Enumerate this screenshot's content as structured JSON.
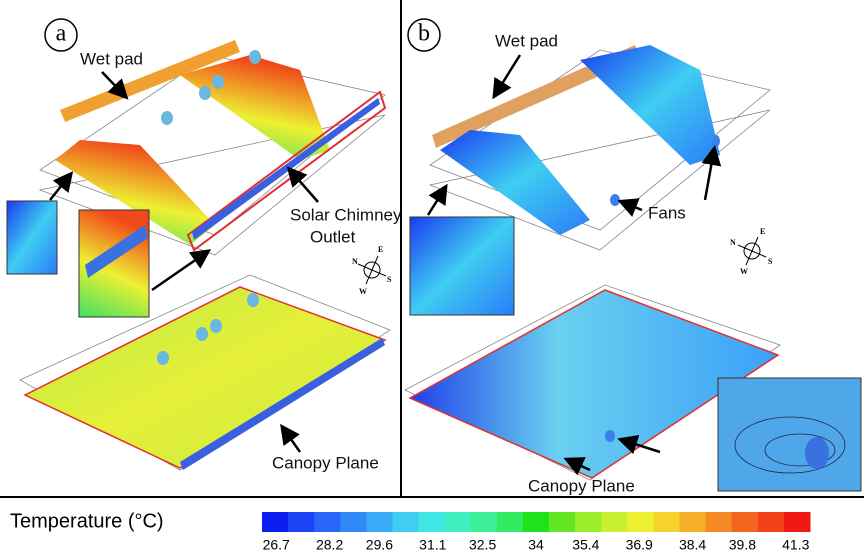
{
  "panels": [
    {
      "label": "a",
      "annotations": [
        "Wet pad",
        "Solar Chimney",
        "Outlet",
        "Canopy Plane"
      ],
      "compass": [
        "N",
        "E",
        "S",
        "W"
      ]
    },
    {
      "label": "b",
      "annotations": [
        "Wet pad",
        "Fans",
        "Canopy Plane"
      ],
      "compass": [
        "N",
        "E",
        "S",
        "W"
      ]
    }
  ],
  "colorbar": {
    "title": "Temperature (°C)",
    "range": [
      26.3,
      41.7
    ],
    "ticks": [
      26.7,
      28.2,
      29.6,
      31.1,
      32.5,
      34.0,
      35.4,
      36.9,
      38.4,
      39.8,
      41.3
    ],
    "colors": [
      "#0b1ff0",
      "#1a44f4",
      "#2766f7",
      "#2f8af8",
      "#38acf8",
      "#3fcdf2",
      "#40e6e4",
      "#3eefc0",
      "#3cef96",
      "#34ea62",
      "#1ee21c",
      "#64e624",
      "#9ced2c",
      "#c8ef30",
      "#eef032",
      "#f5d22c",
      "#f7ae28",
      "#f58a24",
      "#f4661e",
      "#f2421a",
      "#f01a14"
    ]
  }
}
